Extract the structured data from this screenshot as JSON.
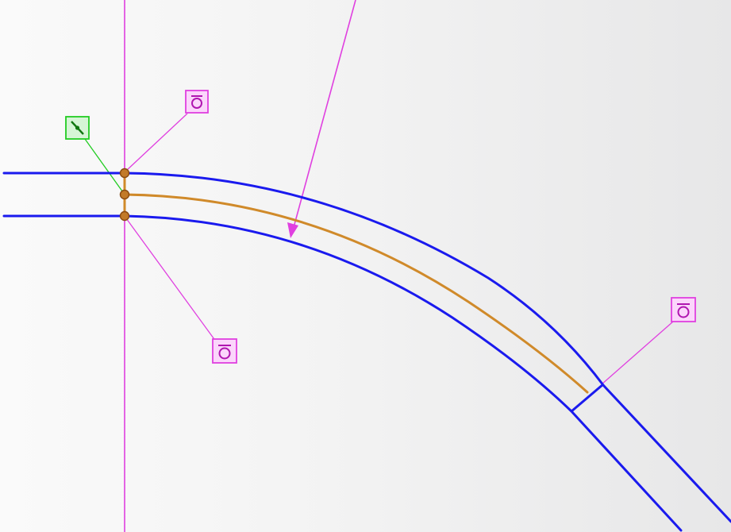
{
  "viewport": {
    "background_left": "#fafafa",
    "background_right": "#e7e7e8"
  },
  "colors": {
    "edge": "#1a1aee",
    "centerline": "#d08a2a",
    "constraint": "#e040e0",
    "constraint_fill": "#fbd6fb",
    "tangent": "#22cc22",
    "tangent_fill": "#d6f5d6",
    "point": "#c27a28",
    "point_outline": "#8a4a10"
  },
  "icons": {
    "constraint_icon": "fix-constraint-icon",
    "tangent_icon": "tangent-constraint-icon"
  }
}
